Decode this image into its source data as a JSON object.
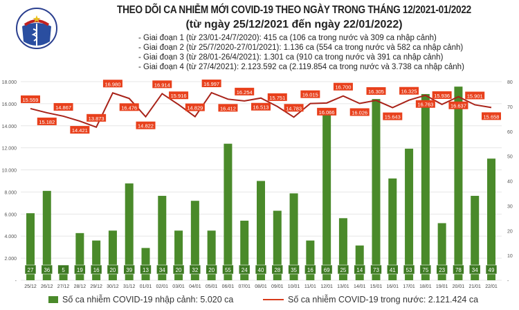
{
  "header": {
    "logo_text": "BỘ Y TẾ · MINISTRY OF HEALTH",
    "title": "THEO DÕI CA NHIỄM MỚI COVID-19 THEO NGÀY TRONG THÁNG 12/2021-01/2022",
    "subtitle": "(từ ngày 25/12/2021 đến ngày 22/01/2022)",
    "stages": [
      "- Giai đoạn 1 (từ 23/01-24/7/2020): 415 ca (106 ca trong nước và 309 ca nhập cảnh)",
      "- Giai đoạn 2 (từ 25/7/2020-27/01/2021): 1.136 ca (554 ca trong nước và 582 ca nhập cảnh)",
      "- Giai đoạn 3 (từ 28/01-26/4/2021): 1.301 ca (910 ca trong nước và 391 ca nhập cảnh)",
      "- Giai đoạn 4 (từ 27/4/2021): 2.123.592 ca (2.119.854 ca trong nước và 3.738 ca nhập cảnh)"
    ]
  },
  "chart_data": {
    "type": "bar+line",
    "categories": [
      "25/12",
      "26/12",
      "27/12",
      "28/12",
      "29/12",
      "30/12",
      "31/12",
      "01/01",
      "02/01",
      "03/01",
      "04/01",
      "05/01",
      "06/01",
      "07/01",
      "08/01",
      "09/01",
      "10/01",
      "11/01",
      "12/01",
      "13/01",
      "14/01",
      "15/01",
      "16/01",
      "17/01",
      "18/01",
      "19/01",
      "20/01",
      "21/01",
      "22/01"
    ],
    "series": [
      {
        "name": "Số ca nhiễm COVID-19 nhập cảnh: 5.020 ca",
        "type": "bar",
        "axis": "right",
        "color": "#4a8a2a",
        "values": [
          27,
          36,
          5,
          19,
          16,
          20,
          39,
          13,
          34,
          20,
          32,
          20,
          55,
          24,
          40,
          28,
          35,
          16,
          69,
          25,
          14,
          73,
          41,
          53,
          75,
          23,
          78,
          34,
          49
        ]
      },
      {
        "name": "Số ca nhiễm COVID-19 trong nước: 2.121.424 ca",
        "type": "line",
        "axis": "left",
        "color": "#d83a1a",
        "values": [
          15559,
          15182,
          14867,
          14421,
          13873,
          16980,
          16476,
          14822,
          16914,
          15916,
          14829,
          16997,
          16412,
          16254,
          16513,
          15751,
          14783,
          16015,
          16066,
          16700,
          16026,
          16305,
          15643,
          16325,
          16763,
          15936,
          16637,
          15901,
          15658
        ]
      }
    ],
    "left_axis": {
      "range": [
        0,
        18000
      ],
      "ticks": [
        "-",
        "2.000",
        "4.000",
        "6.000",
        "8.000",
        "10.000",
        "12.000",
        "14.000",
        "16.000",
        "18.000"
      ]
    },
    "right_axis": {
      "range": [
        0,
        80
      ],
      "ticks": [
        "-",
        "10",
        "20",
        "30",
        "40",
        "50",
        "60",
        "70",
        "80"
      ]
    },
    "grid": true,
    "legend_placement": "bottom"
  }
}
